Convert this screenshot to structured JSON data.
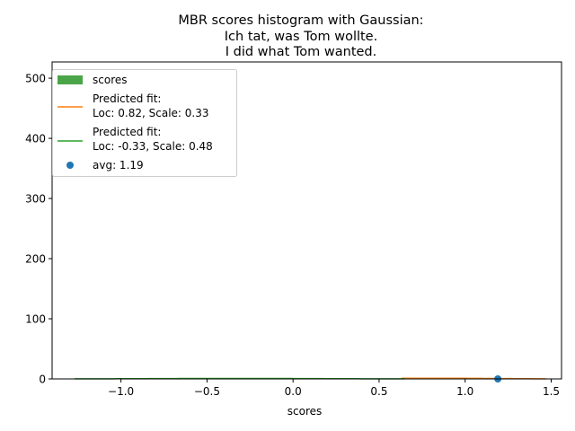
{
  "chart_data": {
    "type": "histogram",
    "title_lines": [
      "MBR scores histogram with Gaussian:",
      "Ich tat, was Tom wollte.",
      "I did what Tom wanted."
    ],
    "xlabel": "scores",
    "ylabel": "",
    "xlim": [
      -1.4,
      1.56
    ],
    "ylim": [
      0,
      527
    ],
    "xticks": [
      -1.0,
      -0.5,
      0.0,
      0.5,
      1.0,
      1.5
    ],
    "xtick_labels": [
      "−1.0",
      "−0.5",
      "0.0",
      "0.5",
      "1.0",
      "1.5"
    ],
    "yticks": [
      0,
      100,
      200,
      300,
      400,
      500
    ],
    "ytick_labels": [
      "0",
      "100",
      "200",
      "300",
      "400",
      "500"
    ],
    "grid": false,
    "legend_position": "upper-left",
    "legend": [
      {
        "kind": "bar",
        "label_lines": [
          "scores"
        ],
        "color": "#4aa548"
      },
      {
        "kind": "line",
        "label_lines": [
          "Predicted fit:",
          "Loc: 0.82, Scale: 0.33"
        ],
        "color": "#ff7f0e"
      },
      {
        "kind": "line",
        "label_lines": [
          "Predicted fit:",
          "Loc: -0.33, Scale: 0.48"
        ],
        "color": "#2ca02c"
      },
      {
        "kind": "point",
        "label_lines": [
          "avg: 1.19"
        ],
        "color": "#1f77b4"
      }
    ],
    "series": [
      {
        "kind": "gaussian",
        "loc": 0.82,
        "scale": 0.33,
        "x_range": [
          0.63,
          1.47
        ],
        "color": "#ff7f0e"
      },
      {
        "kind": "gaussian",
        "loc": -0.33,
        "scale": 0.48,
        "x_range": [
          -1.27,
          0.65
        ],
        "color": "#2ca02c"
      }
    ],
    "points": [
      {
        "x": 1.19,
        "y": 0,
        "color": "#1f77b4"
      }
    ]
  }
}
